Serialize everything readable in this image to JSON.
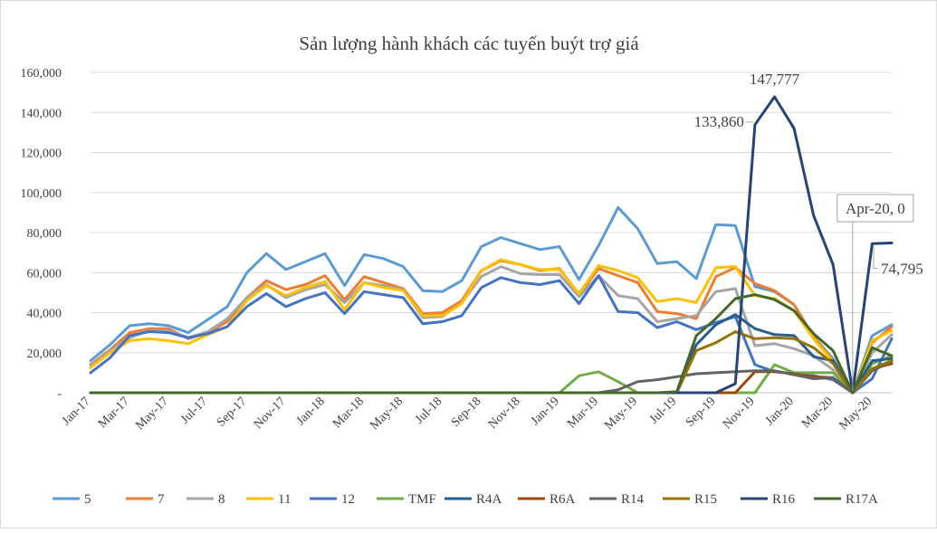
{
  "chart_data": {
    "type": "line",
    "title": "Sản lượng hành khách các tuyến buýt trợ giá",
    "xlabel": "",
    "ylabel": "",
    "ylim": [
      0,
      160000
    ],
    "y_ticks": [
      0,
      20000,
      40000,
      60000,
      80000,
      100000,
      120000,
      140000,
      160000
    ],
    "y_tick_labels": [
      "-",
      "20,000",
      "40,000",
      "60,000",
      "80,000",
      "100,000",
      "120,000",
      "140,000",
      "160,000"
    ],
    "grid": true,
    "legend_position": "bottom",
    "x": [
      "Jan-17",
      "Feb-17",
      "Mar-17",
      "Apr-17",
      "May-17",
      "Jun-17",
      "Jul-17",
      "Aug-17",
      "Sep-17",
      "Oct-17",
      "Nov-17",
      "Dec-17",
      "Jan-18",
      "Feb-18",
      "Mar-18",
      "Apr-18",
      "May-18",
      "Jun-18",
      "Jul-18",
      "Aug-18",
      "Sep-18",
      "Oct-18",
      "Nov-18",
      "Dec-18",
      "Jan-19",
      "Feb-19",
      "Mar-19",
      "Apr-19",
      "May-19",
      "Jun-19",
      "Jul-19",
      "Aug-19",
      "Sep-19",
      "Oct-19",
      "Nov-19",
      "Dec-19",
      "Jan-20",
      "Feb-20",
      "Mar-20",
      "Apr-20",
      "May-20",
      "Jun-20"
    ],
    "x_tick_labels": [
      "Jan-17",
      "Mar-17",
      "May-17",
      "Jul-17",
      "Sep-17",
      "Nov-17",
      "Jan-18",
      "Mar-18",
      "May-18",
      "Jul-18",
      "Sep-18",
      "Nov-18",
      "Jan-19",
      "Mar-19",
      "May-19",
      "Jul-19",
      "Sep-19",
      "Nov-19",
      "Jan-20",
      "Mar-20",
      "May-20"
    ],
    "series": [
      {
        "name": "5",
        "color": "#5B9BD5",
        "values": [
          16000,
          24000,
          33500,
          34500,
          33500,
          30000,
          36500,
          43000,
          60000,
          69500,
          61500,
          65500,
          69500,
          53500,
          69000,
          67000,
          63000,
          51000,
          50500,
          56000,
          73000,
          77500,
          74500,
          71500,
          73000,
          56500,
          73500,
          92500,
          82000,
          64500,
          65500,
          57000,
          84000,
          83500,
          53000,
          50500,
          44000,
          28000,
          17000,
          0,
          28500,
          34000
        ]
      },
      {
        "name": "7",
        "color": "#ED7D31",
        "values": [
          14000,
          21500,
          30000,
          32000,
          32000,
          27000,
          30000,
          35500,
          47500,
          56000,
          51500,
          54000,
          58500,
          46500,
          58000,
          55000,
          52000,
          39500,
          40000,
          46000,
          61000,
          66000,
          64000,
          61000,
          62000,
          49000,
          62000,
          58500,
          55000,
          40500,
          39500,
          37000,
          58000,
          62500,
          54500,
          51000,
          44000,
          28000,
          16000,
          0,
          25000,
          33000
        ]
      },
      {
        "name": "8",
        "color": "#A5A5A5",
        "values": [
          13500,
          21000,
          27500,
          31000,
          31000,
          27500,
          30500,
          37000,
          47500,
          54000,
          47500,
          51500,
          54000,
          45000,
          55000,
          53500,
          51500,
          37500,
          38000,
          45000,
          58000,
          63000,
          59500,
          59000,
          59000,
          48000,
          58500,
          48500,
          47000,
          35500,
          37000,
          38500,
          50500,
          52000,
          23500,
          24500,
          22000,
          18500,
          11500,
          0,
          20000,
          29000
        ]
      },
      {
        "name": "11",
        "color": "#FFC000",
        "values": [
          12500,
          20000,
          26000,
          27000,
          26000,
          24500,
          29000,
          33000,
          46000,
          53500,
          48500,
          52500,
          55500,
          41500,
          55000,
          52500,
          51000,
          38500,
          38500,
          44500,
          61000,
          66500,
          64000,
          61500,
          61500,
          49500,
          63500,
          61000,
          57500,
          45500,
          47000,
          45000,
          62500,
          63000,
          48500,
          47000,
          41000,
          27000,
          15500,
          0,
          26000,
          31000
        ]
      },
      {
        "name": "12",
        "color": "#4472C4",
        "values": [
          10000,
          17500,
          28500,
          30500,
          30000,
          27500,
          29500,
          33000,
          43000,
          49500,
          43000,
          47000,
          50000,
          39500,
          50500,
          49000,
          47500,
          34500,
          35500,
          38500,
          52500,
          57500,
          55000,
          54000,
          56000,
          44500,
          58500,
          40500,
          40000,
          32500,
          35500,
          31500,
          35000,
          38000,
          14000,
          10500,
          9500,
          8500,
          6500,
          0,
          7000,
          27000
        ]
      },
      {
        "name": "TMF",
        "color": "#70AD47",
        "values": [
          0,
          0,
          0,
          0,
          0,
          0,
          0,
          0,
          0,
          0,
          0,
          0,
          0,
          0,
          0,
          0,
          0,
          0,
          0,
          0,
          0,
          0,
          0,
          0,
          0,
          8500,
          10500,
          5500,
          0,
          0,
          0,
          0,
          0,
          0,
          0,
          14000,
          10000,
          10000,
          10000,
          0,
          14500,
          18500
        ]
      },
      {
        "name": "R4A",
        "color": "#255E91",
        "values": [
          0,
          0,
          0,
          0,
          0,
          0,
          0,
          0,
          0,
          0,
          0,
          0,
          0,
          0,
          0,
          0,
          0,
          0,
          0,
          0,
          0,
          0,
          0,
          0,
          0,
          0,
          0,
          0,
          0,
          0,
          0,
          24000,
          34000,
          39000,
          32000,
          29000,
          28500,
          18000,
          16000,
          0,
          16000,
          17000
        ]
      },
      {
        "name": "R6A",
        "color": "#9E480E",
        "values": [
          0,
          0,
          0,
          0,
          0,
          0,
          0,
          0,
          0,
          0,
          0,
          0,
          0,
          0,
          0,
          0,
          0,
          0,
          0,
          0,
          0,
          0,
          0,
          0,
          0,
          0,
          0,
          0,
          0,
          0,
          0,
          0,
          0,
          0,
          10500,
          10500,
          9500,
          8000,
          7500,
          0,
          12000,
          14500
        ]
      },
      {
        "name": "R14",
        "color": "#636363",
        "values": [
          0,
          0,
          0,
          0,
          0,
          0,
          0,
          0,
          0,
          0,
          0,
          0,
          0,
          0,
          0,
          0,
          0,
          0,
          0,
          0,
          0,
          0,
          0,
          0,
          0,
          0,
          0,
          1500,
          5500,
          6500,
          8000,
          9500,
          10000,
          10500,
          11000,
          11000,
          9000,
          7000,
          7500,
          0,
          11000,
          15500
        ]
      },
      {
        "name": "R15",
        "color": "#997300",
        "values": [
          0,
          0,
          0,
          0,
          0,
          0,
          0,
          0,
          0,
          0,
          0,
          0,
          0,
          0,
          0,
          0,
          0,
          0,
          0,
          0,
          0,
          0,
          0,
          0,
          0,
          0,
          0,
          0,
          0,
          0,
          0,
          21000,
          25000,
          30500,
          27000,
          27500,
          27000,
          22500,
          14500,
          0,
          12000,
          16000
        ]
      },
      {
        "name": "R16",
        "color": "#264478",
        "values": [
          0,
          0,
          0,
          0,
          0,
          0,
          0,
          0,
          0,
          0,
          0,
          0,
          0,
          0,
          0,
          0,
          0,
          0,
          0,
          0,
          0,
          0,
          0,
          0,
          0,
          0,
          0,
          0,
          0,
          0,
          0,
          0,
          0,
          4500,
          133860,
          147777,
          132000,
          88500,
          64000,
          0,
          74500,
          74795
        ]
      },
      {
        "name": "R17A",
        "color": "#43682B",
        "values": [
          0,
          0,
          0,
          0,
          0,
          0,
          0,
          0,
          0,
          0,
          0,
          0,
          0,
          0,
          0,
          0,
          0,
          0,
          0,
          0,
          0,
          0,
          0,
          0,
          0,
          0,
          0,
          0,
          0,
          0,
          500,
          28500,
          37000,
          47000,
          49000,
          46500,
          41000,
          29500,
          21000,
          0,
          22500,
          18500
        ]
      }
    ],
    "annotations": [
      {
        "text": "147,777",
        "series": "R16",
        "x": "Dec-19",
        "y": 147777
      },
      {
        "text": "133,860",
        "series": "R16",
        "x": "Nov-19",
        "y": 133860
      },
      {
        "text": "Apr-20, 0",
        "series": "R16",
        "x": "Apr-20",
        "y": 0,
        "boxed": true
      },
      {
        "text": "74,795",
        "series": "R16",
        "x": "Jun-20",
        "y": 74795
      }
    ]
  }
}
